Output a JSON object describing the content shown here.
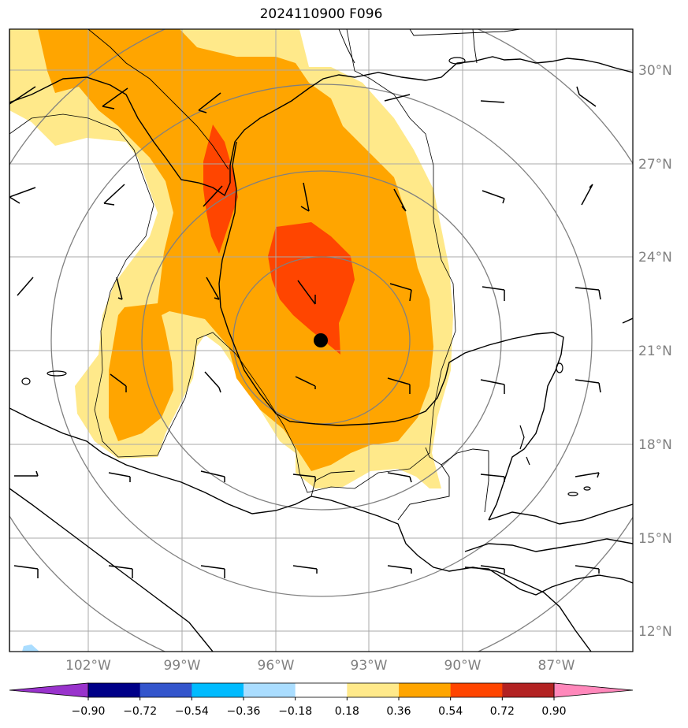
{
  "title": "2024110900 F096",
  "map": {
    "lat_labels": [
      "30°N",
      "27°N",
      "24°N",
      "21°N",
      "18°N",
      "15°N",
      "12°N"
    ],
    "lon_labels": [
      "102°W",
      "99°W",
      "96°W",
      "93°W",
      "90°W",
      "87°W"
    ],
    "storm_center": {
      "lon": -94.5,
      "lat": 21.3
    }
  },
  "colorbar": {
    "labels": [
      "−0.90",
      "−0.72",
      "−0.54",
      "−0.36",
      "−0.18",
      "0.18",
      "0.36",
      "0.54",
      "0.72",
      "0.90"
    ],
    "colors": [
      "#9933cc",
      "#000088",
      "#3355cc",
      "#00bbff",
      "#aaddff",
      "#ffffff",
      "#ffe98a",
      "#ffa500",
      "#ff4500",
      "#b22222",
      "#ff88bb"
    ]
  },
  "fill_colors": {
    "level_018": "#ffe98a",
    "level_036": "#ffa500",
    "level_054": "#ff4500"
  }
}
